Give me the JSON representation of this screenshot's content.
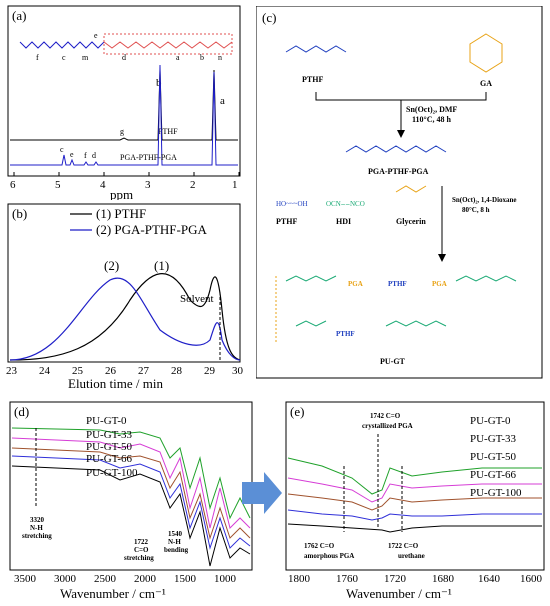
{
  "panel_a": {
    "label": "(a)",
    "xlabel": "ppm",
    "xticks": [
      "6",
      "5",
      "4",
      "3",
      "2",
      "1"
    ],
    "struct_letters": [
      "f",
      "c",
      "e",
      "m",
      "d",
      "a",
      "b",
      "b",
      "a",
      "n"
    ],
    "spectra": [
      {
        "name": "PTHF",
        "peaks": [
          "g",
          "b",
          "a"
        ]
      },
      {
        "name": "PGA-PTHF-PGA",
        "peaks": [
          "c",
          "e",
          "f",
          "d"
        ]
      }
    ],
    "colors": {
      "ptthf": "#000000",
      "copolymer": "#1f1fc8"
    }
  },
  "panel_b": {
    "label": "(b)",
    "xlabel": "Elution time / min",
    "xticks": [
      "23",
      "24",
      "25",
      "26",
      "27",
      "28",
      "29",
      "30"
    ],
    "legend": [
      "(1) PTHF",
      "(2) PGA-PTHF-PGA"
    ],
    "peak_labels": [
      "(2)",
      "(1)"
    ],
    "solvent_label": "Solvent"
  },
  "panel_c": {
    "label": "(c)",
    "reagents1": [
      "PTHF",
      "GA"
    ],
    "cond1": [
      "Sn(Oct)₂, DMF",
      "110°C, 48 h"
    ],
    "product1": "PGA-PTHF-PGA",
    "reagents2": [
      "PTHF",
      "HDI",
      "Glycerin"
    ],
    "cond2": [
      "Sn(Oct)₂, 1,4-Dioxane",
      "80°C, 8 h"
    ],
    "chain_top": [
      "PGA",
      "PTHF",
      "PGA"
    ],
    "chain_bottom": [
      "PTHF"
    ],
    "product2": "PU-GT",
    "colors": {
      "blue": "#1f3fbf",
      "orange": "#e8a317",
      "green": "#19a974"
    }
  },
  "panel_d": {
    "label": "(d)",
    "xlabel": "Wavenumber / cm⁻¹",
    "xticks": [
      "3500",
      "3000",
      "2500",
      "2000",
      "1500",
      "1000"
    ],
    "series": [
      "PU-GT-0",
      "PU-GT-33",
      "PU-GT-50",
      "PU-GT-66",
      "PU-GT-100"
    ],
    "annotations": [
      [
        "3320",
        "N-H",
        "stretching"
      ],
      [
        "1722",
        "C=O",
        "stretching"
      ],
      [
        "1540",
        "N-H",
        "bending"
      ]
    ]
  },
  "panel_e": {
    "label": "(e)",
    "xlabel": "Wavenumber / cm⁻¹",
    "xticks": [
      "1800",
      "1760",
      "1720",
      "1680",
      "1640",
      "1600"
    ],
    "series": [
      "PU-GT-0",
      "PU-GT-33",
      "PU-GT-50",
      "PU-GT-66",
      "PU-GT-100"
    ],
    "annotations": [
      [
        "1742 C=O",
        "crystallized PGA"
      ],
      [
        "1762  C=O",
        "amorphous PGA"
      ],
      [
        "1722  C=O",
        "urethane"
      ]
    ]
  },
  "series_colors": [
    "#1fa12a",
    "#d63dd6",
    "#a0522d",
    "#2f2fd8",
    "#000000"
  ]
}
